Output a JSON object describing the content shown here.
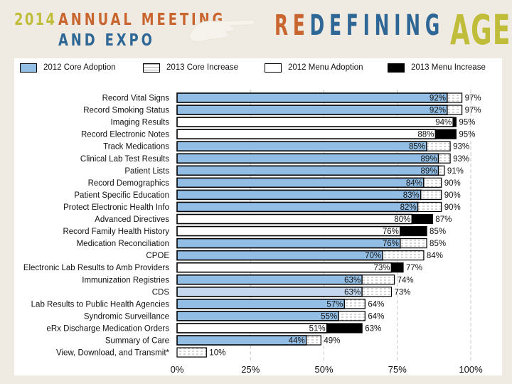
{
  "header": {
    "year": "2014",
    "line1": "ANNUAL MEETING",
    "line2": "AND EXPO",
    "tagline_part1": "RE",
    "tagline_part2": "DEFINING",
    "tagline_part3": "AGE",
    "hand_icon": "pointing-hand-icon"
  },
  "colors": {
    "core": "#92bde4",
    "core_light": "#c5d7ee",
    "menu": "#ffffff",
    "menu_increase": "#000000",
    "orange": "#c9652f",
    "blue": "#2e6796",
    "olive": "#c0bd3a",
    "background": "#efebe2"
  },
  "chart_data": {
    "type": "bar",
    "orientation": "horizontal",
    "stacked": true,
    "title": "",
    "xlabel": "",
    "ylabel": "",
    "xlim": [
      0,
      100
    ],
    "x_ticks": [
      "0%",
      "25%",
      "50%",
      "75%",
      "100%"
    ],
    "grid": "vertical dashed",
    "legend_position": "top",
    "legend": [
      {
        "key": "core2012",
        "label": "2012 Core Adoption"
      },
      {
        "key": "core2013",
        "label": "2013 Core Increase"
      },
      {
        "key": "menu2012",
        "label": "2012 Menu Adoption"
      },
      {
        "key": "menu2013",
        "label": "2013 Menu Increase"
      }
    ],
    "categories": [
      "Record Vital Signs",
      "Record Smoking Status",
      "Imaging Results",
      "Record Electronic Notes",
      "Track Medications",
      "Clinical Lab Test Results",
      "Patient Lists",
      "Record Demographics",
      "Patient Specific Education",
      "Protect Electronic Health Info",
      "Advanced Directives",
      "Record Family Health History",
      "Medication Reconciliation",
      "CPOE",
      "Electronic Lab Results to Amb Providers",
      "Immunization Registries",
      "CDS",
      "Lab Results to Public Health Agencies",
      "Syndromic Surveillance",
      "eRx Discharge Medication Orders",
      "Summary of Care",
      "View, Download, and Transmit*"
    ],
    "rows": [
      {
        "kind": "core",
        "y2012": 92,
        "y2013": 97
      },
      {
        "kind": "core",
        "y2012": 92,
        "y2013": 97
      },
      {
        "kind": "menu",
        "y2012": 94,
        "y2013": 95
      },
      {
        "kind": "menu",
        "y2012": 88,
        "y2013": 95
      },
      {
        "kind": "core",
        "y2012": 85,
        "y2013": 93
      },
      {
        "kind": "core",
        "y2012": 89,
        "y2013": 93
      },
      {
        "kind": "core",
        "y2012": 89,
        "y2013": 91
      },
      {
        "kind": "core",
        "y2012": 84,
        "y2013": 90
      },
      {
        "kind": "core",
        "y2012": 83,
        "y2013": 90
      },
      {
        "kind": "core",
        "y2012": 82,
        "y2013": 90
      },
      {
        "kind": "menu",
        "y2012": 80,
        "y2013": 87
      },
      {
        "kind": "menu",
        "y2012": 76,
        "y2013": 85
      },
      {
        "kind": "core",
        "y2012": 76,
        "y2013": 85
      },
      {
        "kind": "core",
        "y2012": 70,
        "y2013": 84
      },
      {
        "kind": "menu",
        "y2012": 73,
        "y2013": 77
      },
      {
        "kind": "core",
        "y2012": 63,
        "y2013": 74
      },
      {
        "kind": "core_light",
        "y2012": 63,
        "y2013": 73
      },
      {
        "kind": "core",
        "y2012": 57,
        "y2013": 64
      },
      {
        "kind": "core",
        "y2012": 55,
        "y2013": 64
      },
      {
        "kind": "menu",
        "y2012": 51,
        "y2013": 63
      },
      {
        "kind": "core",
        "y2012": 44,
        "y2013": 49
      },
      {
        "kind": "core",
        "y2012": null,
        "y2013": 10
      }
    ],
    "labels_2012": [
      "92%",
      "92%",
      "94%",
      "88%",
      "85%",
      "89%",
      "89%",
      "84%",
      "83%",
      "82%",
      "80%",
      "76%",
      "76%",
      "70%",
      "73%",
      "63%",
      "63%",
      "57%",
      "55%",
      "51%",
      "44%",
      ""
    ],
    "labels_2013": [
      "97%",
      "97%",
      "95%",
      "95%",
      "93%",
      "93%",
      "91%",
      "90%",
      "90%",
      "90%",
      "87%",
      "85%",
      "85%",
      "84%",
      "77%",
      "74%",
      "73%",
      "64%",
      "64%",
      "63%",
      "49%",
      "10%"
    ]
  }
}
